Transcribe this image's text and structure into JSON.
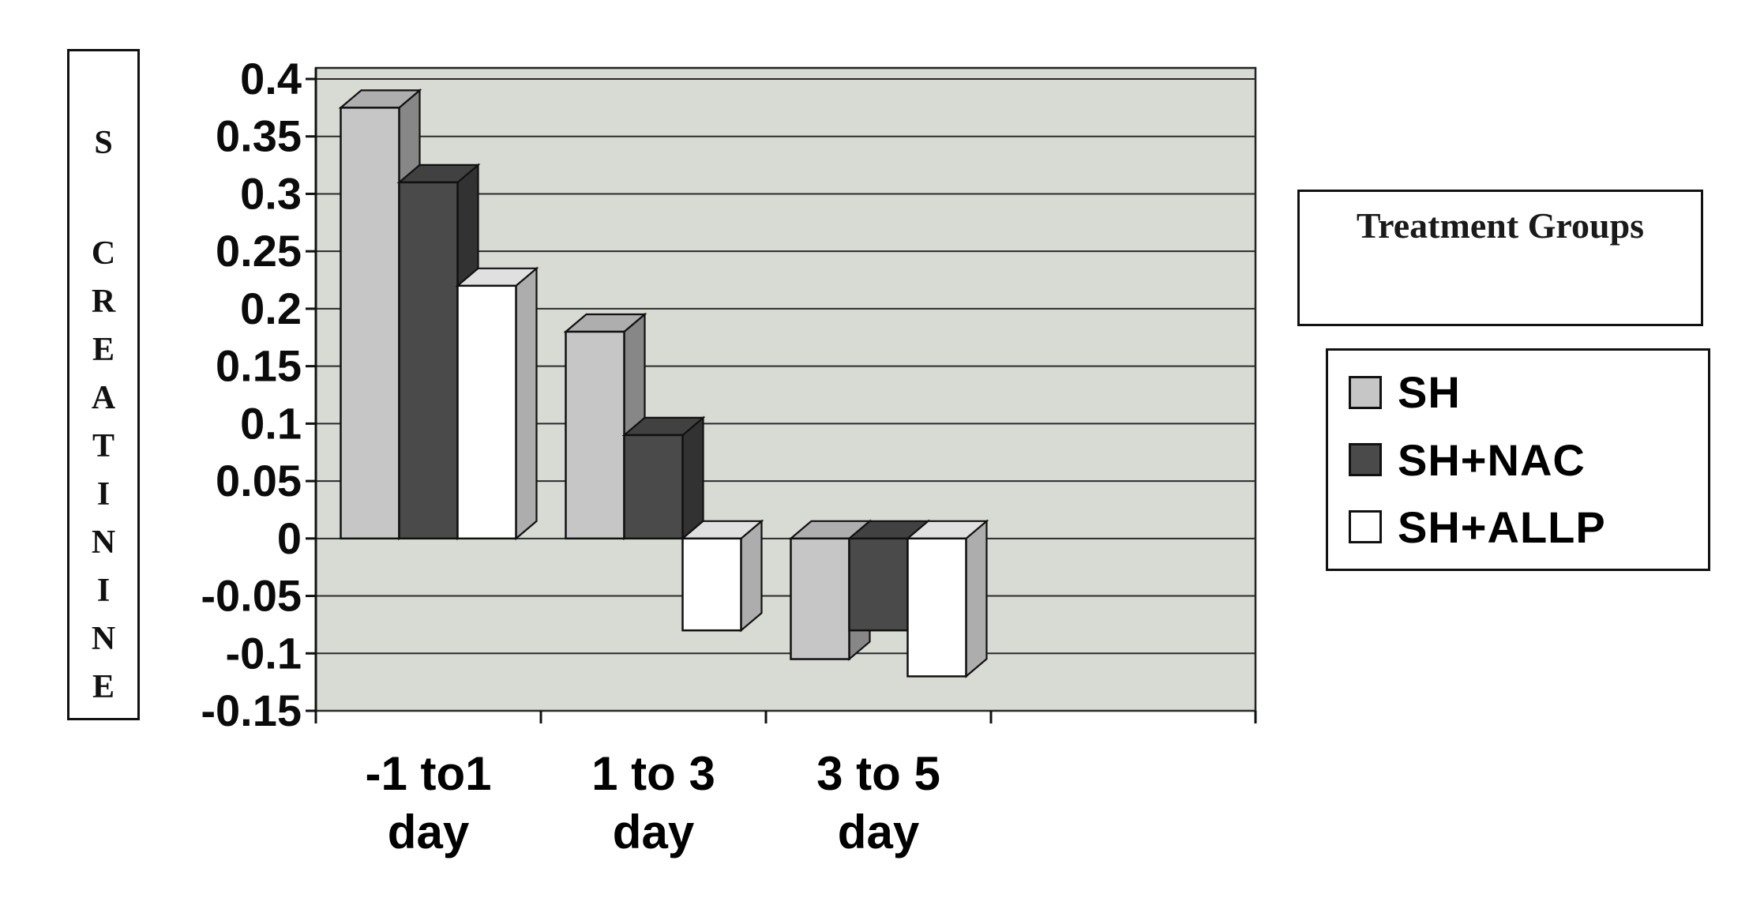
{
  "chart_data": {
    "type": "bar",
    "projection": "3d-effect",
    "title": "",
    "xlabel": "",
    "ylabel": "S CREATININE",
    "categories": [
      "-1 to1 day",
      "1 to 3 day",
      "3 to 5 day"
    ],
    "category_lines": [
      [
        "-1 to1",
        "day"
      ],
      [
        "1 to 3",
        "day"
      ],
      [
        "3 to 5",
        "day"
      ]
    ],
    "series": [
      {
        "name": "SH",
        "color": "#c6c6c6",
        "values": [
          0.375,
          0.18,
          -0.105
        ]
      },
      {
        "name": "SH+NAC",
        "color": "#4a4a4a",
        "values": [
          0.31,
          0.09,
          -0.08
        ]
      },
      {
        "name": "SH+ALLP",
        "color": "#ffffff",
        "values": [
          0.22,
          -0.08,
          -0.12
        ]
      }
    ],
    "ylim": [
      -0.15,
      0.4
    ],
    "yticks": [
      0.4,
      0.35,
      0.3,
      0.25,
      0.2,
      0.15,
      0.1,
      0.05,
      0,
      -0.05,
      -0.1,
      -0.15
    ],
    "ytick_labels": [
      "0.4",
      "0.35",
      "0.3",
      "0.25",
      "0.2",
      "0.15",
      "0.1",
      "0.05",
      "0",
      "-0.05",
      "-0.1",
      "-0.15"
    ],
    "grid": true,
    "plot_bg": "#d7dbd3",
    "legend_title": "Treatment Groups",
    "legend_position": "right"
  }
}
